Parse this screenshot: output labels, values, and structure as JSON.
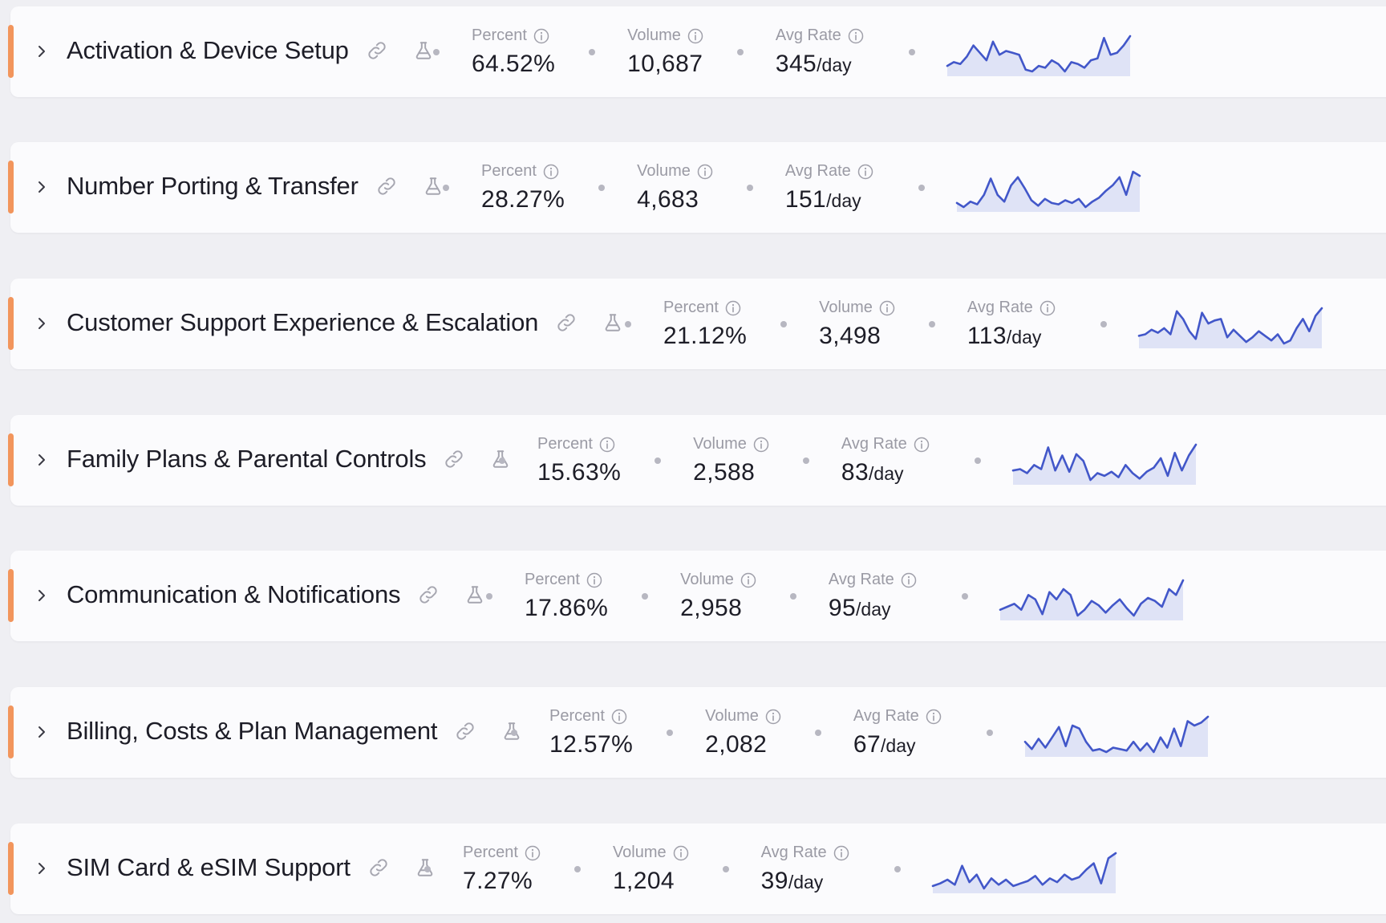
{
  "labels": {
    "percent": "Percent",
    "volume": "Volume",
    "avg_rate": "Avg Rate",
    "per_day": "/day"
  },
  "colors": {
    "accent": "#f2955c",
    "spark_line": "#4257c9",
    "spark_fill": "#dfe3f6"
  },
  "icons": {
    "expand": "chevron-right-icon",
    "link": "link-icon",
    "flask": "flask-icon",
    "info": "info-icon"
  },
  "rows": [
    {
      "title": "Activation & Device Setup",
      "percent": "64.52%",
      "volume": "10,687",
      "rate": "345",
      "trend": [
        7,
        9,
        8,
        12,
        18,
        14,
        10,
        20,
        13,
        15,
        14,
        13,
        5,
        4,
        7,
        6,
        10,
        8,
        4,
        9,
        8,
        6,
        10,
        11,
        22,
        13,
        14,
        18,
        23
      ]
    },
    {
      "title": "Number Porting & Transfer",
      "percent": "28.27%",
      "volume": "4,683",
      "rate": "151",
      "trend": [
        9,
        6,
        10,
        8,
        15,
        27,
        15,
        10,
        22,
        28,
        20,
        11,
        7,
        12,
        9,
        8,
        11,
        9,
        12,
        6,
        10,
        13,
        18,
        22,
        28,
        15,
        32,
        29
      ]
    },
    {
      "title": "Customer Support Experience & Escalation",
      "percent": "21.12%",
      "volume": "3,498",
      "rate": "113",
      "trend": [
        10,
        11,
        14,
        12,
        15,
        11,
        26,
        21,
        13,
        8,
        25,
        18,
        20,
        21,
        9,
        14,
        10,
        6,
        9,
        13,
        10,
        7,
        11,
        5,
        7,
        15,
        21,
        13,
        23,
        28
      ]
    },
    {
      "title": "Family Plans & Parental Controls",
      "percent": "15.63%",
      "volume": "2,588",
      "rate": "83",
      "trend": [
        11,
        12,
        9,
        15,
        12,
        28,
        11,
        22,
        10,
        23,
        18,
        4,
        9,
        7,
        10,
        6,
        15,
        9,
        5,
        10,
        13,
        20,
        7,
        24,
        11,
        22,
        30
      ]
    },
    {
      "title": "Communication & Notifications",
      "percent": "17.86%",
      "volume": "2,958",
      "rate": "95",
      "trend": [
        10,
        12,
        14,
        10,
        20,
        17,
        7,
        22,
        17,
        24,
        20,
        6,
        10,
        16,
        13,
        8,
        13,
        17,
        11,
        6,
        14,
        18,
        16,
        12,
        24,
        20,
        30
      ]
    },
    {
      "title": "Billing, Costs & Plan Management",
      "percent": "12.57%",
      "volume": "2,082",
      "rate": "67",
      "trend": [
        13,
        8,
        15,
        9,
        16,
        23,
        10,
        24,
        22,
        13,
        7,
        8,
        6,
        9,
        8,
        7,
        13,
        7,
        12,
        6,
        16,
        9,
        22,
        10,
        27,
        24,
        26,
        30
      ]
    },
    {
      "title": "SIM Card & eSIM Support",
      "percent": "7.27%",
      "volume": "1,204",
      "rate": "39",
      "trend": [
        8,
        10,
        13,
        9,
        24,
        11,
        17,
        6,
        14,
        9,
        13,
        8,
        10,
        12,
        16,
        9,
        14,
        11,
        17,
        13,
        15,
        21,
        26,
        10,
        30,
        34
      ]
    }
  ]
}
